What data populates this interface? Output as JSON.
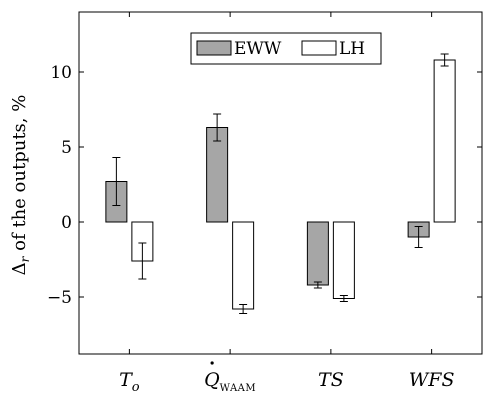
{
  "chart_data": {
    "type": "bar",
    "categories": [
      "T",
      "Q",
      "TS",
      "WFS"
    ],
    "category_labels": [
      {
        "main": "T",
        "sub": "o",
        "style": "italic-subscript"
      },
      {
        "main": "Q",
        "sub": "WAAM",
        "style": "dot-smallcaps"
      },
      {
        "main": "TS",
        "style": "italic"
      },
      {
        "main": "WFS",
        "style": "italic"
      }
    ],
    "series": [
      {
        "name": "EWW",
        "values": [
          2.7,
          6.3,
          -4.2,
          -1.0
        ],
        "errors": [
          1.6,
          0.9,
          0.2,
          0.7
        ],
        "color": "#a6a6a6"
      },
      {
        "name": "LH",
        "values": [
          -2.6,
          -5.8,
          -5.1,
          10.8
        ],
        "errors": [
          1.2,
          0.3,
          0.2,
          0.4
        ],
        "color": "#ffffff"
      }
    ],
    "ylabel_main": "Δ",
    "ylabel_sub": "r",
    "ylabel_rest": " of the outputs, %",
    "ylim": [
      -8.8,
      14
    ],
    "yticks": [
      -5,
      0,
      5,
      10
    ],
    "ytick_labels": [
      "−5",
      "0",
      "5",
      "10"
    ],
    "legend_position": "top-center",
    "grid": false
  }
}
